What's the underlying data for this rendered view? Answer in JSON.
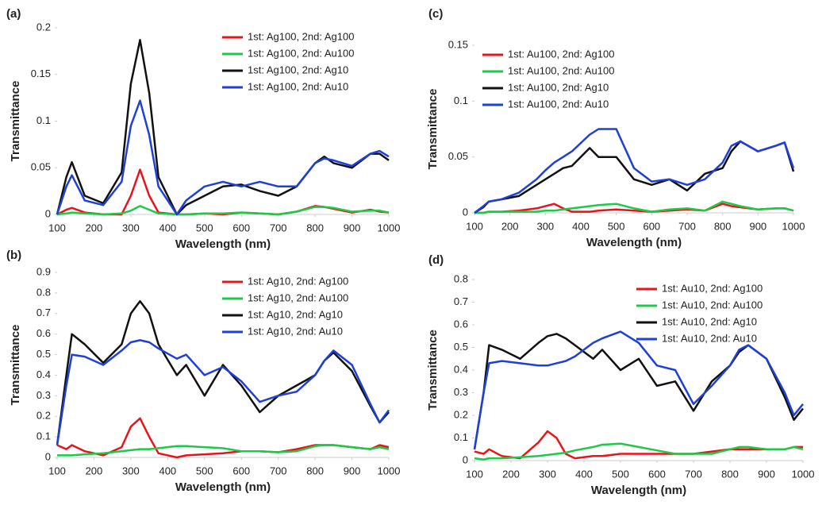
{
  "chart_data": [
    {
      "type": "line",
      "panel": "(a)",
      "xlabel": "Wavelength (nm)",
      "ylabel": "Transmittance",
      "legend": "upper right",
      "xlim": [
        100,
        1000
      ],
      "xticks": [
        100,
        200,
        300,
        400,
        500,
        600,
        700,
        800,
        900,
        1000
      ],
      "ylim": [
        0,
        0.2
      ],
      "yticks": [
        0,
        0.05,
        0.1,
        0.15,
        0.2
      ],
      "x": [
        100,
        125,
        140,
        175,
        225,
        275,
        300,
        325,
        350,
        375,
        425,
        450,
        500,
        550,
        600,
        650,
        700,
        750,
        800,
        825,
        850,
        900,
        950,
        975,
        1000
      ],
      "series": [
        {
          "name": "1st: Ag100, 2nd: Ag100",
          "color": "#e8141b",
          "values": [
            0,
            0.005,
            0.007,
            0.002,
            0,
            0,
            0.02,
            0.048,
            0.02,
            0.002,
            0,
            0,
            0.001,
            0,
            0.002,
            0.001,
            0,
            0.003,
            0.009,
            0.008,
            0.006,
            0.002,
            0.005,
            0.003,
            0.002
          ]
        },
        {
          "name": "1st: Ag100, 2nd: Au100",
          "color": "#1ec94a",
          "values": [
            0,
            0.001,
            0.002,
            0.001,
            0,
            0.001,
            0.004,
            0.009,
            0.005,
            0.001,
            0,
            0,
            0.001,
            0.001,
            0.002,
            0.001,
            0,
            0.003,
            0.008,
            0.008,
            0.007,
            0.003,
            0.004,
            0.004,
            0.002
          ]
        },
        {
          "name": "1st: Ag100, 2nd: Ag10",
          "color": "#111111",
          "values": [
            0,
            0.04,
            0.056,
            0.02,
            0.012,
            0.045,
            0.14,
            0.187,
            0.13,
            0.04,
            0,
            0.01,
            0.02,
            0.03,
            0.032,
            0.025,
            0.02,
            0.03,
            0.055,
            0.062,
            0.055,
            0.05,
            0.065,
            0.065,
            0.058
          ]
        },
        {
          "name": "1st: Ag100, 2nd: Au10",
          "color": "#1f3fd6",
          "values": [
            0,
            0.03,
            0.042,
            0.015,
            0.01,
            0.035,
            0.095,
            0.122,
            0.085,
            0.03,
            0,
            0.015,
            0.03,
            0.035,
            0.03,
            0.035,
            0.03,
            0.03,
            0.055,
            0.06,
            0.058,
            0.052,
            0.065,
            0.068,
            0.062
          ]
        }
      ]
    },
    {
      "type": "line",
      "panel": "(b)",
      "xlabel": "Wavelength (nm)",
      "ylabel": "Transmittance",
      "legend": "upper right",
      "xlim": [
        100,
        1000
      ],
      "xticks": [
        100,
        200,
        300,
        400,
        500,
        600,
        700,
        800,
        900,
        1000
      ],
      "ylim": [
        0,
        0.9
      ],
      "yticks": [
        0,
        0.1,
        0.2,
        0.3,
        0.4,
        0.5,
        0.6,
        0.7,
        0.8,
        0.9
      ],
      "x": [
        100,
        125,
        140,
        175,
        225,
        275,
        300,
        325,
        350,
        375,
        425,
        450,
        500,
        550,
        600,
        650,
        700,
        750,
        800,
        825,
        850,
        900,
        950,
        975,
        1000
      ],
      "series": [
        {
          "name": "1st: Ag10, 2nd: Ag100",
          "color": "#e8141b",
          "values": [
            0.06,
            0.04,
            0.06,
            0.03,
            0.01,
            0.05,
            0.15,
            0.19,
            0.1,
            0.02,
            0,
            0.01,
            0.015,
            0.02,
            0.03,
            0.03,
            0.025,
            0.04,
            0.06,
            0.06,
            0.06,
            0.05,
            0.04,
            0.06,
            0.05
          ]
        },
        {
          "name": "1st: Ag10, 2nd: Au100",
          "color": "#1ec94a",
          "values": [
            0.01,
            0.01,
            0.01,
            0.015,
            0.02,
            0.03,
            0.035,
            0.04,
            0.04,
            0.045,
            0.055,
            0.055,
            0.05,
            0.045,
            0.03,
            0.03,
            0.025,
            0.03,
            0.055,
            0.06,
            0.06,
            0.05,
            0.04,
            0.05,
            0.04
          ]
        },
        {
          "name": "1st: Ag10, 2nd: Ag10",
          "color": "#111111",
          "values": [
            0.06,
            0.4,
            0.6,
            0.55,
            0.46,
            0.55,
            0.7,
            0.76,
            0.7,
            0.55,
            0.4,
            0.45,
            0.3,
            0.45,
            0.35,
            0.22,
            0.3,
            0.35,
            0.4,
            0.47,
            0.51,
            0.42,
            0.25,
            0.17,
            0.22
          ]
        },
        {
          "name": "1st: Ag10, 2nd: Au10",
          "color": "#1f3fd6",
          "values": [
            0.06,
            0.35,
            0.5,
            0.49,
            0.45,
            0.52,
            0.56,
            0.57,
            0.56,
            0.53,
            0.48,
            0.5,
            0.4,
            0.44,
            0.37,
            0.27,
            0.3,
            0.32,
            0.4,
            0.47,
            0.52,
            0.45,
            0.26,
            0.17,
            0.23
          ]
        }
      ]
    },
    {
      "type": "line",
      "panel": "(c)",
      "xlabel": "Wavelength (nm)",
      "ylabel": "Transmittance",
      "legend": "upper left",
      "xlim": [
        100,
        1000
      ],
      "xticks": [
        100,
        200,
        300,
        400,
        500,
        600,
        700,
        800,
        900,
        1000
      ],
      "ylim": [
        0,
        0.15
      ],
      "yticks": [
        0,
        0.05,
        0.1,
        0.15
      ],
      "x": [
        100,
        125,
        140,
        175,
        225,
        275,
        300,
        325,
        350,
        375,
        425,
        450,
        500,
        550,
        600,
        650,
        700,
        750,
        800,
        825,
        850,
        900,
        950,
        975,
        1000
      ],
      "series": [
        {
          "name": "1st: Au100, 2nd: Ag100",
          "color": "#e8141b",
          "values": [
            0,
            0,
            0.001,
            0.001,
            0.002,
            0.004,
            0.006,
            0.008,
            0.004,
            0.001,
            0.001,
            0.002,
            0.003,
            0.002,
            0.001,
            0.002,
            0.003,
            0.002,
            0.008,
            0.006,
            0.005,
            0.003,
            0.004,
            0.004,
            0.002
          ]
        },
        {
          "name": "1st: Au100, 2nd: Au100",
          "color": "#1ec94a",
          "values": [
            0,
            0,
            0.001,
            0.001,
            0.001,
            0.001,
            0.002,
            0.002,
            0.003,
            0.004,
            0.006,
            0.007,
            0.008,
            0.004,
            0.001,
            0.003,
            0.004,
            0.002,
            0.01,
            0.008,
            0.006,
            0.003,
            0.004,
            0.004,
            0.002
          ]
        },
        {
          "name": "1st: Au100, 2nd: Ag10",
          "color": "#111111",
          "values": [
            0,
            0.005,
            0.01,
            0.012,
            0.015,
            0.025,
            0.03,
            0.035,
            0.04,
            0.042,
            0.058,
            0.05,
            0.05,
            0.03,
            0.025,
            0.03,
            0.02,
            0.035,
            0.04,
            0.055,
            0.064,
            0.055,
            0.06,
            0.063,
            0.037
          ]
        },
        {
          "name": "1st: Au100, 2nd: Au10",
          "color": "#1f3fd6",
          "values": [
            0,
            0.006,
            0.01,
            0.012,
            0.018,
            0.03,
            0.038,
            0.045,
            0.05,
            0.055,
            0.07,
            0.075,
            0.075,
            0.04,
            0.028,
            0.03,
            0.025,
            0.03,
            0.045,
            0.06,
            0.064,
            0.055,
            0.06,
            0.063,
            0.04
          ]
        }
      ]
    },
    {
      "type": "line",
      "panel": "(d)",
      "xlabel": "Wavelength (nm)",
      "ylabel": "Transmittance",
      "legend": "upper right",
      "xlim": [
        100,
        1000
      ],
      "xticks": [
        100,
        200,
        300,
        400,
        500,
        600,
        700,
        800,
        900,
        1000
      ],
      "ylim": [
        0,
        0.8
      ],
      "yticks": [
        0,
        0.1,
        0.2,
        0.3,
        0.4,
        0.5,
        0.6,
        0.7,
        0.8
      ],
      "x": [
        100,
        125,
        140,
        175,
        225,
        275,
        300,
        325,
        350,
        375,
        425,
        450,
        500,
        550,
        600,
        650,
        700,
        750,
        800,
        825,
        850,
        900,
        950,
        975,
        1000
      ],
      "series": [
        {
          "name": "1st: Au10, 2nd: Ag100",
          "color": "#e8141b",
          "values": [
            0.04,
            0.03,
            0.05,
            0.02,
            0.01,
            0.08,
            0.13,
            0.1,
            0.03,
            0.01,
            0.02,
            0.02,
            0.03,
            0.03,
            0.03,
            0.03,
            0.03,
            0.04,
            0.05,
            0.05,
            0.05,
            0.05,
            0.05,
            0.06,
            0.06
          ]
        },
        {
          "name": "1st: Au10, 2nd: Au100",
          "color": "#1ec94a",
          "values": [
            0.01,
            0.005,
            0.01,
            0.01,
            0.015,
            0.02,
            0.025,
            0.03,
            0.035,
            0.045,
            0.06,
            0.07,
            0.075,
            0.06,
            0.045,
            0.03,
            0.03,
            0.03,
            0.05,
            0.06,
            0.06,
            0.05,
            0.05,
            0.06,
            0.05
          ]
        },
        {
          "name": "1st: Au10, 2nd: Ag10",
          "color": "#111111",
          "values": [
            0.05,
            0.3,
            0.51,
            0.49,
            0.45,
            0.52,
            0.55,
            0.56,
            0.54,
            0.51,
            0.45,
            0.49,
            0.4,
            0.45,
            0.33,
            0.35,
            0.22,
            0.35,
            0.42,
            0.48,
            0.51,
            0.45,
            0.28,
            0.18,
            0.23
          ]
        },
        {
          "name": "1st: Au10, 2nd: Au10",
          "color": "#1f3fd6",
          "values": [
            0.05,
            0.3,
            0.43,
            0.44,
            0.43,
            0.42,
            0.42,
            0.43,
            0.44,
            0.46,
            0.52,
            0.54,
            0.57,
            0.52,
            0.42,
            0.4,
            0.25,
            0.33,
            0.42,
            0.49,
            0.51,
            0.45,
            0.3,
            0.2,
            0.25
          ]
        }
      ]
    }
  ]
}
